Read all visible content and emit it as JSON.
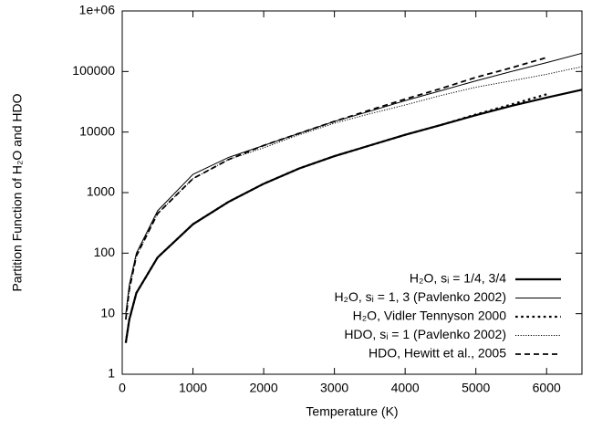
{
  "chart_data": {
    "type": "line",
    "xlabel": "Temperature (K)",
    "ylabel": "Partition Function of H₂O and HDO",
    "xlim": [
      0,
      6500
    ],
    "xticks": [
      0,
      1000,
      2000,
      3000,
      4000,
      5000,
      6000
    ],
    "ylim": [
      1,
      1000000
    ],
    "yscale": "log",
    "yticks": [
      1,
      10,
      100,
      1000,
      10000,
      100000,
      {
        "value": 1000000,
        "label": "1e+06"
      }
    ],
    "legend": "lower right",
    "series": [
      {
        "name": "H₂O, sᵢ = 1/4, 3/4",
        "color": "#000000",
        "line_width": 2.2,
        "line_style": "solid",
        "x": [
          50,
          100,
          200,
          500,
          1000,
          1500,
          2000,
          2500,
          3000,
          3500,
          4000,
          4500,
          5000,
          5500,
          6000,
          6500
        ],
        "values": [
          3.3,
          8,
          22,
          85,
          300,
          700,
          1400,
          2500,
          4000,
          6000,
          9000,
          13000,
          19000,
          27000,
          37000,
          50000
        ]
      },
      {
        "name": "H₂O, sᵢ = 1, 3 (Pavlenko 2002)",
        "color": "#000000",
        "line_width": 1,
        "line_style": "solid",
        "x": [
          50,
          100,
          200,
          500,
          1000,
          1500,
          2000,
          2500,
          3000,
          3500,
          4000,
          4500,
          5000,
          5500,
          6000,
          6500
        ],
        "values": [
          10,
          30,
          100,
          500,
          2000,
          3800,
          6000,
          9500,
          15000,
          22000,
          33000,
          48000,
          70000,
          100000,
          140000,
          200000
        ]
      },
      {
        "name": "H₂O, Vidler  Tennyson 2000",
        "color": "#000000",
        "line_width": 2.2,
        "line_style": "dotted",
        "x": [
          50,
          100,
          200,
          500,
          1000,
          1500,
          2000,
          2500,
          3000,
          3500,
          4000,
          4500,
          5000,
          5500,
          6000
        ],
        "values": [
          3.3,
          8,
          22,
          85,
          300,
          700,
          1400,
          2500,
          4000,
          6000,
          9000,
          13000,
          19500,
          28500,
          42000
        ]
      },
      {
        "name": "HDO, sᵢ = 1 (Pavlenko 2002)",
        "color": "#000000",
        "line_width": 1,
        "line_style": "dotted",
        "x": [
          50,
          100,
          200,
          500,
          1000,
          1500,
          2000,
          2500,
          3000,
          3500,
          4000,
          4500,
          5000,
          5500,
          6000,
          6500
        ],
        "values": [
          8,
          25,
          90,
          450,
          1700,
          3500,
          5500,
          9000,
          14000,
          20000,
          28000,
          40000,
          55000,
          70000,
          90000,
          120000
        ]
      },
      {
        "name": "HDO, Hewitt et al., 2005",
        "color": "#000000",
        "line_width": 1.8,
        "line_style": "dashed",
        "x": [
          50,
          100,
          200,
          500,
          1000,
          1500,
          2000,
          2500,
          3000,
          3500,
          4000,
          4500,
          5000,
          5500,
          6000
        ],
        "values": [
          8,
          25,
          90,
          450,
          1700,
          3500,
          6000,
          9500,
          15000,
          23000,
          35000,
          52000,
          80000,
          115000,
          170000
        ]
      }
    ]
  }
}
